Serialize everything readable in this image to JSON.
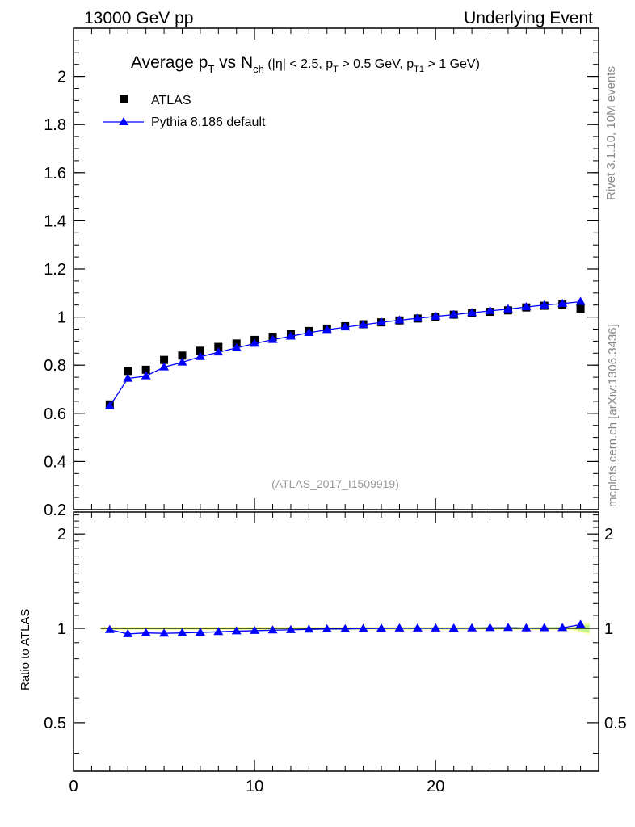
{
  "header": {
    "left": "13000 GeV pp",
    "right": "Underlying Event"
  },
  "side_labels": {
    "rivet": "Rivet 3.1.10,  10M events",
    "mcplots": "mcplots.cern.ch [arXiv:1306.3436]"
  },
  "chart_data": [
    {
      "type": "scatter",
      "panel": "main",
      "title": {
        "pre": "Average p",
        "pre_sub": "T",
        "mid": " vs N",
        "mid_sub": "ch",
        "cut1": " (|η| < 2.5, p",
        "cut1_sub": "T",
        "cut2": " > 0.5 GeV, p",
        "cut2_sub": "T1",
        "cut3": " > 1 GeV)"
      },
      "analysis_label": "(ATLAS_2017_I1509919)",
      "xlim": [
        0,
        29
      ],
      "ylim": [
        0.2,
        2.2
      ],
      "yticks": [
        0.2,
        0.4,
        0.6,
        0.8,
        1.0,
        1.2,
        1.4,
        1.6,
        1.8,
        2.0
      ],
      "ytick_labels": [
        "0.2",
        "0.4",
        "0.6",
        "0.8",
        "1",
        "1.2",
        "1.4",
        "1.6",
        "1.8",
        "2"
      ],
      "legend": [
        {
          "name": "ATLAS",
          "marker": "square",
          "color": "#000000"
        },
        {
          "name": "Pythia 8.186 default",
          "marker": "triangle",
          "color": "#0000ff"
        }
      ],
      "series": [
        {
          "name": "ATLAS",
          "x": [
            2,
            3,
            4,
            5,
            6,
            7,
            8,
            9,
            10,
            11,
            12,
            13,
            14,
            15,
            16,
            17,
            18,
            19,
            20,
            21,
            22,
            23,
            24,
            25,
            26,
            27,
            28
          ],
          "values": [
            0.637,
            0.776,
            0.781,
            0.822,
            0.84,
            0.86,
            0.876,
            0.89,
            0.905,
            0.918,
            0.93,
            0.942,
            0.952,
            0.962,
            0.97,
            0.978,
            0.986,
            0.994,
            1.002,
            1.01,
            1.016,
            1.022,
            1.028,
            1.04,
            1.047,
            1.052,
            1.035
          ]
        },
        {
          "name": "Pythia 8.186 default",
          "x": [
            2,
            3,
            4,
            5,
            6,
            7,
            8,
            9,
            10,
            11,
            12,
            13,
            14,
            15,
            16,
            17,
            18,
            19,
            20,
            21,
            22,
            23,
            24,
            25,
            26,
            27,
            28
          ],
          "values": [
            0.63,
            0.745,
            0.755,
            0.792,
            0.812,
            0.835,
            0.854,
            0.872,
            0.89,
            0.906,
            0.92,
            0.935,
            0.947,
            0.958,
            0.968,
            0.978,
            0.987,
            0.995,
            1.003,
            1.01,
            1.018,
            1.026,
            1.033,
            1.042,
            1.05,
            1.056,
            1.064
          ]
        }
      ]
    },
    {
      "type": "scatter",
      "panel": "ratio",
      "ylabel": "Ratio to ATLAS",
      "xlim": [
        0,
        29
      ],
      "ylim": [
        0.35,
        2.35
      ],
      "yscale": "log",
      "yticks": [
        0.5,
        1,
        2
      ],
      "ytick_labels": [
        "0.5",
        "1",
        "2"
      ],
      "xticks": [
        0,
        10,
        20
      ],
      "xtick_labels": [
        "0",
        "10",
        "20"
      ],
      "series": [
        {
          "name": "Pythia 8.186 default / ATLAS",
          "x": [
            2,
            3,
            4,
            5,
            6,
            7,
            8,
            9,
            10,
            11,
            12,
            13,
            14,
            15,
            16,
            17,
            18,
            19,
            20,
            21,
            22,
            23,
            24,
            25,
            26,
            27,
            28
          ],
          "values": [
            0.99,
            0.96,
            0.967,
            0.964,
            0.967,
            0.971,
            0.975,
            0.98,
            0.983,
            0.987,
            0.989,
            0.993,
            0.995,
            0.995,
            0.998,
            1.0,
            1.001,
            1.001,
            1.001,
            1.0,
            1.002,
            1.004,
            1.005,
            1.002,
            1.003,
            1.004,
            1.028
          ]
        }
      ]
    }
  ]
}
